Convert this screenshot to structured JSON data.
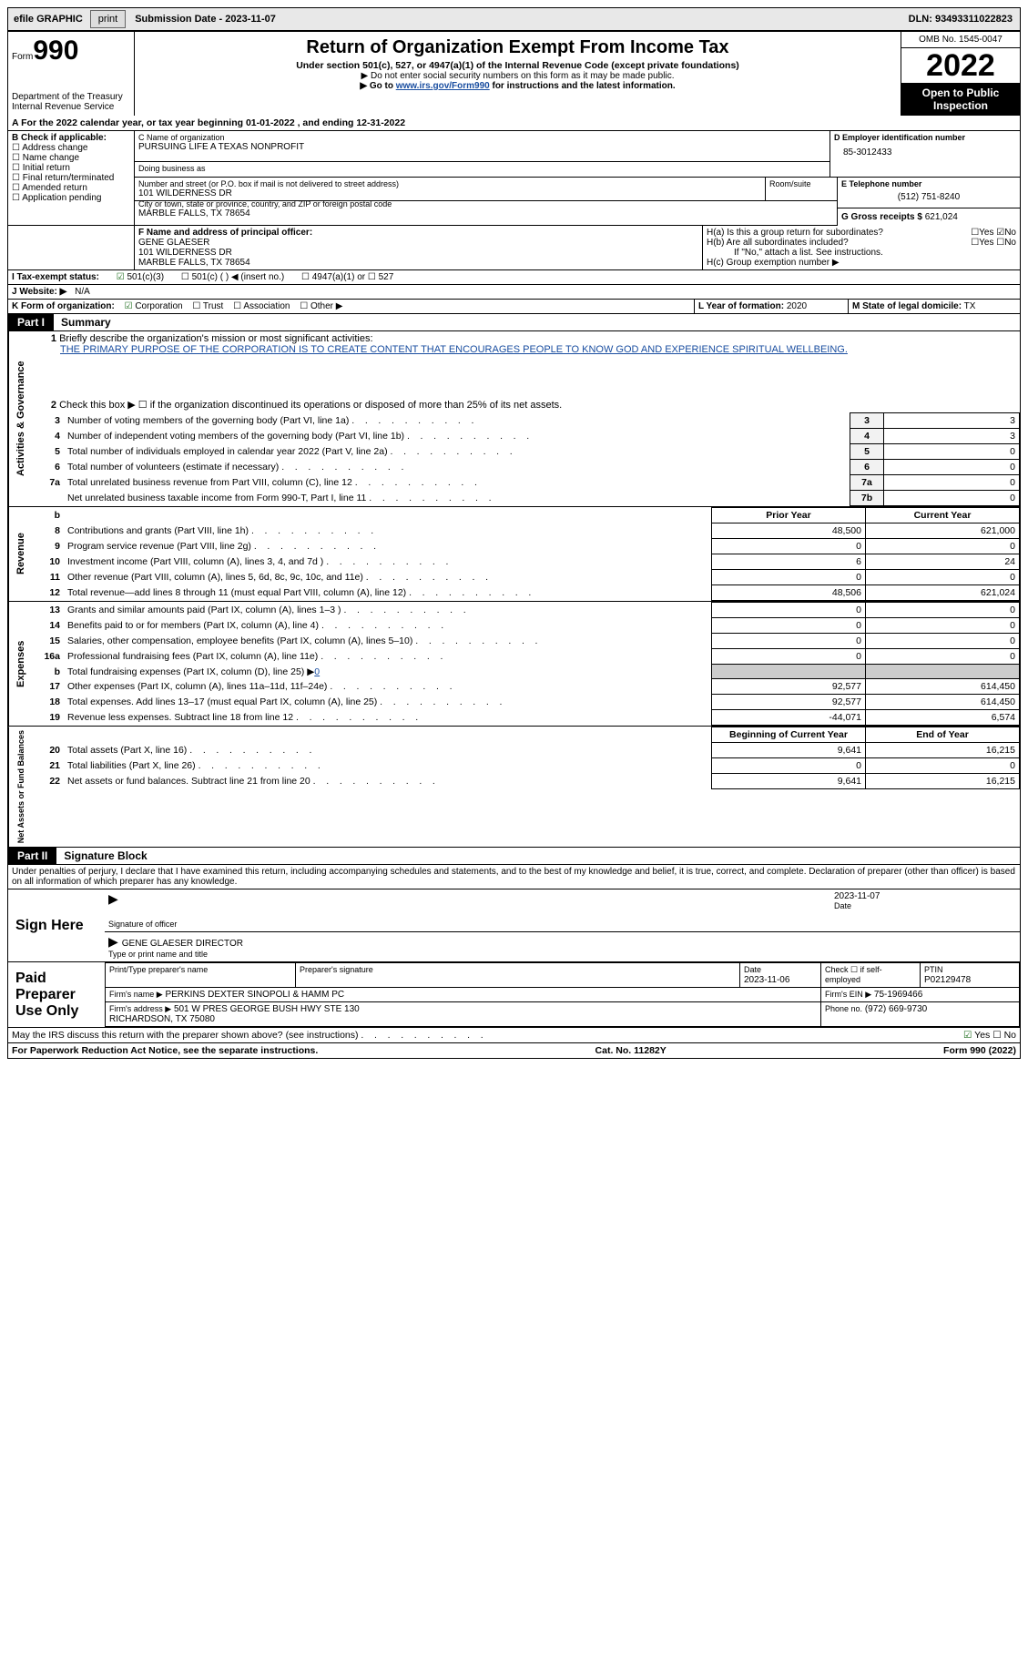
{
  "topbar": {
    "efile": "efile GRAPHIC",
    "print": "print",
    "subdate_label": "Submission Date - 2023-11-07",
    "dln": "DLN: 93493311022823"
  },
  "header": {
    "form_label": "Form",
    "form_num": "990",
    "dept": "Department of the Treasury\nInternal Revenue Service",
    "title": "Return of Organization Exempt From Income Tax",
    "sub1": "Under section 501(c), 527, or 4947(a)(1) of the Internal Revenue Code (except private foundations)",
    "sub2": "▶ Do not enter social security numbers on this form as it may be made public.",
    "sub3_pre": "▶ Go to ",
    "sub3_link": "www.irs.gov/Form990",
    "sub3_post": " for instructions and the latest information.",
    "omb": "OMB No. 1545-0047",
    "year": "2022",
    "open": "Open to Public Inspection"
  },
  "a": {
    "line": "A For the 2022 calendar year, or tax year beginning 01-01-2022    , and ending 12-31-2022"
  },
  "b": {
    "label": "B Check if applicable:",
    "opts": [
      "Address change",
      "Name change",
      "Initial return",
      "Final return/terminated",
      "Amended return",
      "Application pending"
    ]
  },
  "c": {
    "name_label": "C Name of organization",
    "name": "PURSUING LIFE A TEXAS NONPROFIT",
    "dba_label": "Doing business as",
    "dba": "",
    "addr_label": "Number and street (or P.O. box if mail is not delivered to street address)",
    "room_label": "Room/suite",
    "addr": "101 WILDERNESS DR",
    "city_label": "City or town, state or province, country, and ZIP or foreign postal code",
    "city": "MARBLE FALLS, TX   78654"
  },
  "d": {
    "label": "D Employer identification number",
    "val": "85-3012433"
  },
  "e": {
    "label": "E Telephone number",
    "val": "(512) 751-8240"
  },
  "g": {
    "label": "G Gross receipts $",
    "val": "621,024"
  },
  "f": {
    "label": "F Name and address of principal officer:",
    "name": "GENE GLAESER",
    "addr1": "101 WILDERNESS DR",
    "addr2": "MARBLE FALLS, TX   78654"
  },
  "h": {
    "a": "H(a)  Is this a group return for subordinates?",
    "b": "H(b)  Are all subordinates included?",
    "bnote": "If \"No,\" attach a list. See instructions.",
    "c": "H(c)  Group exemption number ▶"
  },
  "i": {
    "label": "I  Tax-exempt status:",
    "o1": "501(c)(3)",
    "o2": "501(c) (   ) ◀ (insert no.)",
    "o3": "4947(a)(1) or",
    "o4": "527"
  },
  "j": {
    "label": "J  Website: ▶",
    "val": "N/A"
  },
  "k": {
    "label": "K Form of organization:",
    "opts": [
      "Corporation",
      "Trust",
      "Association",
      "Other ▶"
    ]
  },
  "l": {
    "label": "L Year of formation:",
    "val": "2020"
  },
  "m": {
    "label": "M State of legal domicile:",
    "val": "TX"
  },
  "part1": {
    "hdr": "Part I",
    "title": "Summary",
    "q1": "Briefly describe the organization's mission or most significant activities:",
    "mission": "THE PRIMARY PURPOSE OF THE CORPORATION IS TO CREATE CONTENT THAT ENCOURAGES PEOPLE TO KNOW GOD AND EXPERIENCE SPIRITUAL WELLBEING.",
    "q2": "Check this box ▶ ☐ if the organization discontinued its operations or disposed of more than 25% of its net assets.",
    "vert1": "Activities & Governance",
    "vert2": "Revenue",
    "vert3": "Expenses",
    "vert4": "Net Assets or Fund Balances",
    "gov_lines": [
      {
        "n": "3",
        "t": "Number of voting members of the governing body (Part VI, line 1a)",
        "box": "3",
        "v": "3"
      },
      {
        "n": "4",
        "t": "Number of independent voting members of the governing body (Part VI, line 1b)",
        "box": "4",
        "v": "3"
      },
      {
        "n": "5",
        "t": "Total number of individuals employed in calendar year 2022 (Part V, line 2a)",
        "box": "5",
        "v": "0"
      },
      {
        "n": "6",
        "t": "Total number of volunteers (estimate if necessary)",
        "box": "6",
        "v": "0"
      },
      {
        "n": "7a",
        "t": "Total unrelated business revenue from Part VIII, column (C), line 12",
        "box": "7a",
        "v": "0"
      },
      {
        "n": "",
        "t": "Net unrelated business taxable income from Form 990-T, Part I, line 11",
        "box": "7b",
        "v": "0"
      }
    ],
    "col_prior": "Prior Year",
    "col_curr": "Current Year",
    "rev_lines": [
      {
        "n": "8",
        "t": "Contributions and grants (Part VIII, line 1h)",
        "p": "48,500",
        "c": "621,000"
      },
      {
        "n": "9",
        "t": "Program service revenue (Part VIII, line 2g)",
        "p": "0",
        "c": "0"
      },
      {
        "n": "10",
        "t": "Investment income (Part VIII, column (A), lines 3, 4, and 7d )",
        "p": "6",
        "c": "24"
      },
      {
        "n": "11",
        "t": "Other revenue (Part VIII, column (A), lines 5, 6d, 8c, 9c, 10c, and 11e)",
        "p": "0",
        "c": "0"
      },
      {
        "n": "12",
        "t": "Total revenue—add lines 8 through 11 (must equal Part VIII, column (A), line 12)",
        "p": "48,506",
        "c": "621,024"
      }
    ],
    "exp_lines": [
      {
        "n": "13",
        "t": "Grants and similar amounts paid (Part IX, column (A), lines 1–3 )",
        "p": "0",
        "c": "0"
      },
      {
        "n": "14",
        "t": "Benefits paid to or for members (Part IX, column (A), line 4)",
        "p": "0",
        "c": "0"
      },
      {
        "n": "15",
        "t": "Salaries, other compensation, employee benefits (Part IX, column (A), lines 5–10)",
        "p": "0",
        "c": "0"
      },
      {
        "n": "16a",
        "t": "Professional fundraising fees (Part IX, column (A), line 11e)",
        "p": "0",
        "c": "0"
      }
    ],
    "exp_b": {
      "n": "b",
      "t": "Total fundraising expenses (Part IX, column (D), line 25) ▶",
      "v": "0"
    },
    "exp_lines2": [
      {
        "n": "17",
        "t": "Other expenses (Part IX, column (A), lines 11a–11d, 11f–24e)",
        "p": "92,577",
        "c": "614,450"
      },
      {
        "n": "18",
        "t": "Total expenses. Add lines 13–17 (must equal Part IX, column (A), line 25)",
        "p": "92,577",
        "c": "614,450"
      },
      {
        "n": "19",
        "t": "Revenue less expenses. Subtract line 18 from line 12",
        "p": "-44,071",
        "c": "6,574"
      }
    ],
    "col_beg": "Beginning of Current Year",
    "col_end": "End of Year",
    "net_lines": [
      {
        "n": "20",
        "t": "Total assets (Part X, line 16)",
        "p": "9,641",
        "c": "16,215"
      },
      {
        "n": "21",
        "t": "Total liabilities (Part X, line 26)",
        "p": "0",
        "c": "0"
      },
      {
        "n": "22",
        "t": "Net assets or fund balances. Subtract line 21 from line 20",
        "p": "9,641",
        "c": "16,215"
      }
    ]
  },
  "part2": {
    "hdr": "Part II",
    "title": "Signature Block",
    "decl": "Under penalties of perjury, I declare that I have examined this return, including accompanying schedules and statements, and to the best of my knowledge and belief, it is true, correct, and complete. Declaration of preparer (other than officer) is based on all information of which preparer has any knowledge.",
    "sign_here": "Sign Here",
    "sig_officer": "Signature of officer",
    "sig_date": "2023-11-07",
    "date_lbl": "Date",
    "typed": "GENE GLAESER  DIRECTOR",
    "typed_lbl": "Type or print name and title",
    "paid": "Paid Preparer Use Only",
    "prep_name_lbl": "Print/Type preparer's name",
    "prep_sig_lbl": "Preparer's signature",
    "prep_date_lbl": "Date",
    "prep_date": "2023-11-06",
    "self_emp": "Check ☐ if self-employed",
    "ptin_lbl": "PTIN",
    "ptin": "P02129478",
    "firm_name_lbl": "Firm's name     ▶",
    "firm_name": "PERKINS DEXTER SINOPOLI & HAMM PC",
    "firm_ein_lbl": "Firm's EIN ▶",
    "firm_ein": "75-1969466",
    "firm_addr_lbl": "Firm's address ▶",
    "firm_addr": "501 W PRES GEORGE BUSH HWY STE 130\nRICHARDSON, TX   75080",
    "phone_lbl": "Phone no.",
    "phone": "(972) 669-9730",
    "may_irs": "May the IRS discuss this return with the preparer shown above? (see instructions)",
    "yes": "Yes",
    "no": "No"
  },
  "footer": {
    "left": "For Paperwork Reduction Act Notice, see the separate instructions.",
    "mid": "Cat. No. 11282Y",
    "right": "Form 990 (2022)"
  }
}
